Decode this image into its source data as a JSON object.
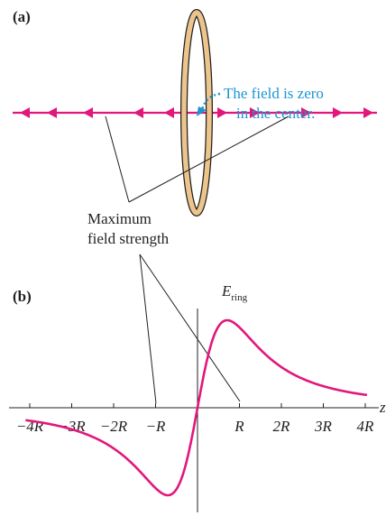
{
  "panel_a": {
    "label": "(a)",
    "annotation": [
      "The field is zero",
      "in the center."
    ],
    "callout": [
      "Maximum",
      "field strength"
    ]
  },
  "panel_b": {
    "label": "(b)",
    "axis_label": {
      "symbol": "E",
      "subscript": "ring"
    },
    "x_axis_symbol": "z",
    "tick_labels": [
      "−4R",
      "−3R",
      "−2R",
      "−R",
      "R",
      "2R",
      "3R",
      "4R"
    ]
  }
}
